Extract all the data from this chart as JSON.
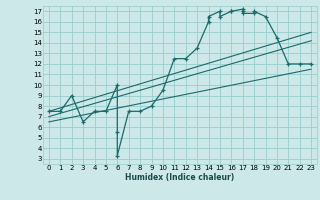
{
  "xlabel": "Humidex (Indice chaleur)",
  "xlim": [
    -0.5,
    23.5
  ],
  "ylim": [
    2.5,
    17.5
  ],
  "xticks": [
    0,
    1,
    2,
    3,
    4,
    5,
    6,
    7,
    8,
    9,
    10,
    11,
    12,
    13,
    14,
    15,
    16,
    17,
    18,
    19,
    20,
    21,
    22,
    23
  ],
  "yticks": [
    3,
    4,
    5,
    6,
    7,
    8,
    9,
    10,
    11,
    12,
    13,
    14,
    15,
    16,
    17
  ],
  "bg_color": "#cce8e8",
  "grid_color": "#99cccc",
  "line_color": "#1a6b6b",
  "main_x": [
    0,
    1,
    2,
    3,
    4,
    5,
    6,
    6,
    6,
    7,
    8,
    9,
    10,
    11,
    12,
    13,
    14,
    14,
    15,
    15,
    16,
    16,
    17,
    17,
    17,
    18,
    18,
    19,
    20,
    21,
    22,
    23
  ],
  "main_y": [
    7.5,
    7.5,
    9.0,
    6.5,
    7.5,
    7.5,
    10.0,
    5.5,
    3.3,
    7.5,
    7.5,
    8.0,
    9.5,
    12.5,
    12.5,
    13.5,
    16.0,
    16.5,
    17.0,
    16.5,
    17.0,
    17.0,
    17.2,
    17.0,
    16.8,
    16.8,
    17.0,
    16.5,
    14.5,
    12.0,
    12.0,
    12.0
  ],
  "line1_x": [
    0,
    23
  ],
  "line1_y": [
    7.5,
    15.0
  ],
  "line2_x": [
    0,
    23
  ],
  "line2_y": [
    6.5,
    11.5
  ],
  "line3_x": [
    0,
    23
  ],
  "line3_y": [
    7.0,
    14.2
  ]
}
